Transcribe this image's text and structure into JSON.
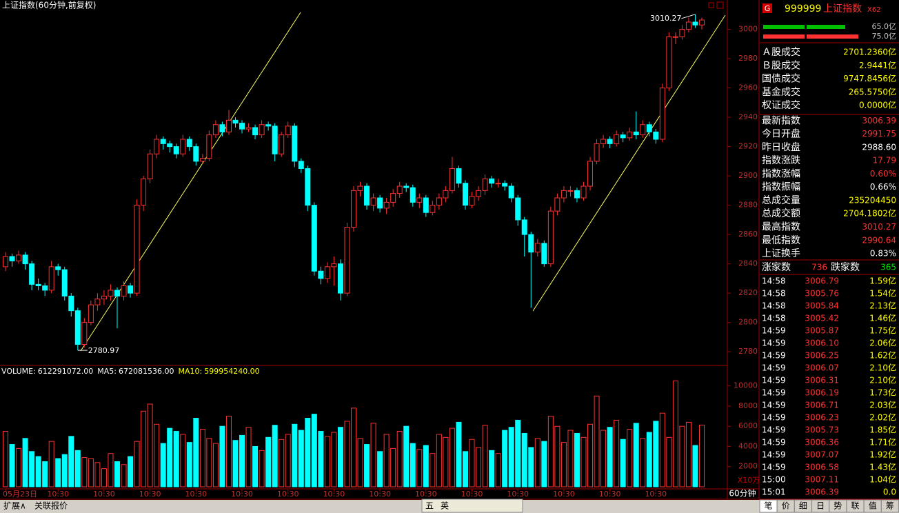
{
  "chart_data": [
    {
      "type": "candlestick",
      "title": "上证指数(60分钟,前复权)",
      "categories": [
        "05月23日",
        null,
        null,
        null,
        null,
        null,
        null,
        null,
        "10:30",
        null,
        null,
        null,
        null,
        null,
        null,
        "10:30",
        null,
        null,
        null,
        null,
        null,
        null,
        "10:30",
        null,
        null,
        null,
        null,
        null,
        null,
        "10:30",
        null,
        null,
        null,
        null,
        null,
        null,
        "10:30",
        null,
        null,
        null,
        null,
        null,
        null,
        "10:30",
        null,
        null,
        null,
        null,
        null,
        null,
        "10:30",
        null,
        null,
        null,
        null,
        null,
        null,
        "10:30",
        null,
        null,
        null,
        null,
        null,
        null,
        "10:30",
        null,
        null,
        null,
        null,
        null,
        null,
        "10:30",
        null,
        null,
        null,
        null,
        null,
        null,
        "10:30",
        null,
        null,
        null,
        null,
        null,
        null,
        "10:30",
        null,
        null,
        null,
        null,
        null,
        null,
        "10:30",
        null,
        null,
        null,
        null,
        null,
        null,
        "10:30",
        null,
        null,
        null,
        null,
        null,
        null,
        null
      ],
      "candles": [
        [
          2838,
          2848,
          2835,
          2845
        ],
        [
          2845,
          2847,
          2838,
          2842
        ],
        [
          2842,
          2849,
          2840,
          2846
        ],
        [
          2846,
          2848,
          2836,
          2840
        ],
        [
          2840,
          2842,
          2822,
          2826
        ],
        [
          2826,
          2830,
          2822,
          2825
        ],
        [
          2825,
          2827,
          2818,
          2822
        ],
        [
          2822,
          2842,
          2820,
          2838
        ],
        [
          2838,
          2840,
          2832,
          2836
        ],
        [
          2836,
          2838,
          2815,
          2818
        ],
        [
          2818,
          2820,
          2804,
          2808
        ],
        [
          2808,
          2810,
          2780.97,
          2785
        ],
        [
          2785,
          2803,
          2783,
          2800
        ],
        [
          2800,
          2815,
          2798,
          2812
        ],
        [
          2812,
          2820,
          2808,
          2816
        ],
        [
          2816,
          2822,
          2812,
          2818
        ],
        [
          2818,
          2826,
          2815,
          2822
        ],
        [
          2822,
          2824,
          2796,
          2818
        ],
        [
          2818,
          2828,
          2815,
          2825
        ],
        [
          2825,
          2827,
          2817,
          2820
        ],
        [
          2820,
          2884,
          2818,
          2880
        ],
        [
          2880,
          2900,
          2876,
          2898
        ],
        [
          2898,
          2918,
          2895,
          2915
        ],
        [
          2915,
          2928,
          2912,
          2925
        ],
        [
          2925,
          2927,
          2918,
          2922
        ],
        [
          2922,
          2924,
          2916,
          2920
        ],
        [
          2920,
          2922,
          2912,
          2915
        ],
        [
          2915,
          2928,
          2913,
          2925
        ],
        [
          2925,
          2927,
          2917,
          2920
        ],
        [
          2920,
          2922,
          2907,
          2910
        ],
        [
          2910,
          2915,
          2908,
          2912
        ],
        [
          2912,
          2931,
          2910,
          2928
        ],
        [
          2928,
          2938,
          2926,
          2935
        ],
        [
          2935,
          2937,
          2927,
          2930
        ],
        [
          2930,
          2945,
          2928,
          2938
        ],
        [
          2938,
          2940,
          2933,
          2936
        ],
        [
          2936,
          2938,
          2929,
          2932
        ],
        [
          2932,
          2936,
          2930,
          2933
        ],
        [
          2933,
          2935,
          2925,
          2928
        ],
        [
          2928,
          2938,
          2926,
          2935
        ],
        [
          2935,
          2937,
          2931,
          2934
        ],
        [
          2934,
          2936,
          2910,
          2915
        ],
        [
          2915,
          2930,
          2913,
          2928
        ],
        [
          2928,
          2937,
          2926,
          2934
        ],
        [
          2934,
          2936,
          2906,
          2910
        ],
        [
          2910,
          2912,
          2902,
          2905
        ],
        [
          2905,
          2907,
          2876,
          2880
        ],
        [
          2880,
          2882,
          2832,
          2835
        ],
        [
          2835,
          2838,
          2826,
          2830
        ],
        [
          2830,
          2841,
          2827,
          2838
        ],
        [
          2838,
          2845,
          2825,
          2840
        ],
        [
          2840,
          2843,
          2815,
          2820
        ],
        [
          2820,
          2868,
          2818,
          2865
        ],
        [
          2865,
          2893,
          2862,
          2890
        ],
        [
          2890,
          2896,
          2886,
          2893
        ],
        [
          2893,
          2895,
          2877,
          2880
        ],
        [
          2880,
          2888,
          2876,
          2885
        ],
        [
          2885,
          2887,
          2875,
          2878
        ],
        [
          2878,
          2885,
          2874,
          2882
        ],
        [
          2882,
          2891,
          2879,
          2888
        ],
        [
          2888,
          2896,
          2885,
          2893
        ],
        [
          2893,
          2895,
          2889,
          2892
        ],
        [
          2892,
          2894,
          2879,
          2882
        ],
        [
          2882,
          2888,
          2878,
          2885
        ],
        [
          2885,
          2887,
          2872,
          2875
        ],
        [
          2875,
          2883,
          2873,
          2880
        ],
        [
          2880,
          2888,
          2877,
          2885
        ],
        [
          2885,
          2893,
          2882,
          2890
        ],
        [
          2890,
          2913,
          2888,
          2905
        ],
        [
          2905,
          2907,
          2892,
          2895
        ],
        [
          2895,
          2897,
          2877,
          2880
        ],
        [
          2880,
          2889,
          2878,
          2886
        ],
        [
          2886,
          2893,
          2883,
          2890
        ],
        [
          2890,
          2901,
          2887,
          2898
        ],
        [
          2898,
          2900,
          2892,
          2895
        ],
        [
          2895,
          2898,
          2892,
          2895
        ],
        [
          2895,
          2897,
          2890,
          2893
        ],
        [
          2893,
          2895,
          2882,
          2885
        ],
        [
          2885,
          2887,
          2866,
          2870
        ],
        [
          2870,
          2872,
          2845,
          2860
        ],
        [
          2860,
          2862,
          2810,
          2848
        ],
        [
          2848,
          2857,
          2845,
          2854
        ],
        [
          2854,
          2856,
          2838,
          2840
        ],
        [
          2840,
          2879,
          2838,
          2876
        ],
        [
          2876,
          2888,
          2873,
          2885
        ],
        [
          2885,
          2893,
          2882,
          2890
        ],
        [
          2890,
          2893,
          2886,
          2890
        ],
        [
          2890,
          2892,
          2882,
          2885
        ],
        [
          2885,
          2896,
          2883,
          2893
        ],
        [
          2893,
          2913,
          2890,
          2910
        ],
        [
          2910,
          2925,
          2908,
          2922
        ],
        [
          2922,
          2928,
          2919,
          2925
        ],
        [
          2925,
          2927,
          2919,
          2922
        ],
        [
          2922,
          2931,
          2920,
          2928
        ],
        [
          2928,
          2930,
          2923,
          2926
        ],
        [
          2926,
          2933,
          2924,
          2930
        ],
        [
          2930,
          2944,
          2925,
          2928
        ],
        [
          2928,
          2938,
          2926,
          2935
        ],
        [
          2935,
          2937,
          2927,
          2930
        ],
        [
          2930,
          2932,
          2922,
          2925
        ],
        [
          2925,
          2963,
          2923,
          2960
        ],
        [
          2960,
          2998,
          2958,
          2995
        ],
        [
          2995,
          2998,
          2990,
          2995
        ],
        [
          2995,
          3003,
          2993,
          3000
        ],
        [
          3000,
          3008,
          2998,
          3005
        ],
        [
          3005,
          3010.27,
          3001,
          3003
        ],
        [
          3003,
          3008,
          3000,
          3006.39
        ]
      ],
      "ylim": [
        2773,
        3013
      ],
      "yticks": [
        2780,
        2800,
        2820,
        2840,
        2860,
        2880,
        2900,
        2920,
        2940,
        2960,
        2980,
        3000
      ],
      "up_color": "#ff3232",
      "down_color": "#00ffff"
    },
    {
      "type": "bar",
      "indicators": [
        {
          "label": "VOLUME:",
          "value": "612291072.00",
          "color": "#ffffff"
        },
        {
          "label": "MA5:",
          "value": "672081536.00",
          "color": "#ffffff"
        },
        {
          "label": "MA10:",
          "value": "599954240.00",
          "color": "#ffff00"
        }
      ],
      "values": [
        5500,
        4200,
        3800,
        4800,
        3500,
        3000,
        2500,
        4500,
        2800,
        3200,
        5000,
        3600,
        2900,
        2800,
        2400,
        1800,
        3300,
        2500,
        2200,
        3000,
        4500,
        7500,
        8200,
        6200,
        4300,
        5800,
        5500,
        5200,
        4400,
        6800,
        5700,
        4800,
        4300,
        6000,
        7000,
        4600,
        5100,
        5900,
        4000,
        3600,
        4900,
        6100,
        4700,
        5200,
        6200,
        5600,
        6800,
        7200,
        5500,
        5000,
        5400,
        5900,
        6500,
        7800,
        4800,
        4200,
        6300,
        3500,
        5200,
        3800,
        5500,
        6000,
        4300,
        3700,
        4100,
        3300,
        5200,
        4900,
        5800,
        6400,
        3500,
        4700,
        3900,
        6100,
        3600,
        3300,
        5600,
        5900,
        6600,
        5300,
        3900,
        4800,
        4500,
        7000,
        6000,
        4400,
        5600,
        5300,
        4900,
        6200,
        9000,
        5600,
        5900,
        6600,
        4700,
        5700,
        6300,
        4800,
        5400,
        6500,
        7300,
        4900,
        10500,
        6000,
        6400,
        4100,
        6122.91
      ],
      "ylim": [
        0,
        10800
      ],
      "yticks": [
        2000,
        4000,
        6000,
        8000,
        10000
      ],
      "unit_label": "X10万"
    }
  ],
  "quote_panel": {
    "badge": "G",
    "code": "999999",
    "name": "上证指数",
    "tag": "X62",
    "bars": [
      {
        "label": "65.0亿",
        "color": "#00c000"
      },
      {
        "label": "75.0亿",
        "color": "#ff3232"
      }
    ],
    "rows": [
      {
        "label": "Ａ股成交",
        "value": "2701.2360亿",
        "color": "#ffff00"
      },
      {
        "label": "Ｂ股成交",
        "value": "2.9441亿",
        "color": "#ffff00"
      },
      {
        "label": "国债成交",
        "value": "9747.8456亿",
        "color": "#ffff00"
      },
      {
        "label": "基金成交",
        "value": "265.5750亿",
        "color": "#ffff00"
      },
      {
        "label": "权证成交",
        "value": "0.0000亿",
        "color": "#ffff00"
      },
      {
        "label": "最新指数",
        "value": "3006.39",
        "color": "#ff3232"
      },
      {
        "label": "今日开盘",
        "value": "2991.75",
        "color": "#ff3232"
      },
      {
        "label": "昨日收盘",
        "value": "2988.60",
        "color": "#ffffff"
      },
      {
        "label": "指数涨跌",
        "value": "17.79",
        "color": "#ff3232"
      },
      {
        "label": "指数涨幅",
        "value": "0.60%",
        "color": "#ff3232"
      },
      {
        "label": "指数振幅",
        "value": "0.66%",
        "color": "#ffffff"
      },
      {
        "label": "总成交量",
        "value": "235204450",
        "color": "#ffff00"
      },
      {
        "label": "总成交额",
        "value": "2704.1802亿",
        "color": "#ffff00"
      },
      {
        "label": "最高指数",
        "value": "3010.27",
        "color": "#ff3232"
      },
      {
        "label": "最低指数",
        "value": "2990.64",
        "color": "#ff3232"
      },
      {
        "label": "上证换手",
        "value": "0.83%",
        "color": "#ffffff"
      }
    ],
    "breadth": {
      "up_label": "涨家数",
      "up": 736,
      "down_label": "跌家数",
      "down": 365
    },
    "ticks": [
      [
        "14:58",
        "3006.79",
        "1.59亿"
      ],
      [
        "14:58",
        "3005.76",
        "1.54亿"
      ],
      [
        "14:58",
        "3005.84",
        "2.13亿"
      ],
      [
        "14:58",
        "3005.42",
        "1.46亿"
      ],
      [
        "14:59",
        "3005.87",
        "1.75亿"
      ],
      [
        "14:59",
        "3006.10",
        "2.06亿"
      ],
      [
        "14:59",
        "3006.25",
        "1.62亿"
      ],
      [
        "14:59",
        "3006.07",
        "2.10亿"
      ],
      [
        "14:59",
        "3006.31",
        "2.10亿"
      ],
      [
        "14:59",
        "3006.19",
        "1.73亿"
      ],
      [
        "14:59",
        "3006.71",
        "2.03亿"
      ],
      [
        "14:59",
        "3006.23",
        "2.02亿"
      ],
      [
        "14:59",
        "3005.73",
        "1.85亿"
      ],
      [
        "14:59",
        "3006.36",
        "1.71亿"
      ],
      [
        "14:59",
        "3007.07",
        "1.92亿"
      ],
      [
        "14:59",
        "3006.58",
        "1.43亿"
      ],
      [
        "15:00",
        "3007.11",
        "1.04亿"
      ],
      [
        "15:01",
        "3006.39",
        "0.0"
      ]
    ],
    "tabs": [
      "笔",
      "价",
      "细",
      "日",
      "势",
      "联",
      "值",
      "筹"
    ]
  },
  "status_bar": {
    "left": [
      "扩展∧",
      "关联报价"
    ],
    "ime": [
      "五",
      "英"
    ],
    "period": "60分钟"
  }
}
